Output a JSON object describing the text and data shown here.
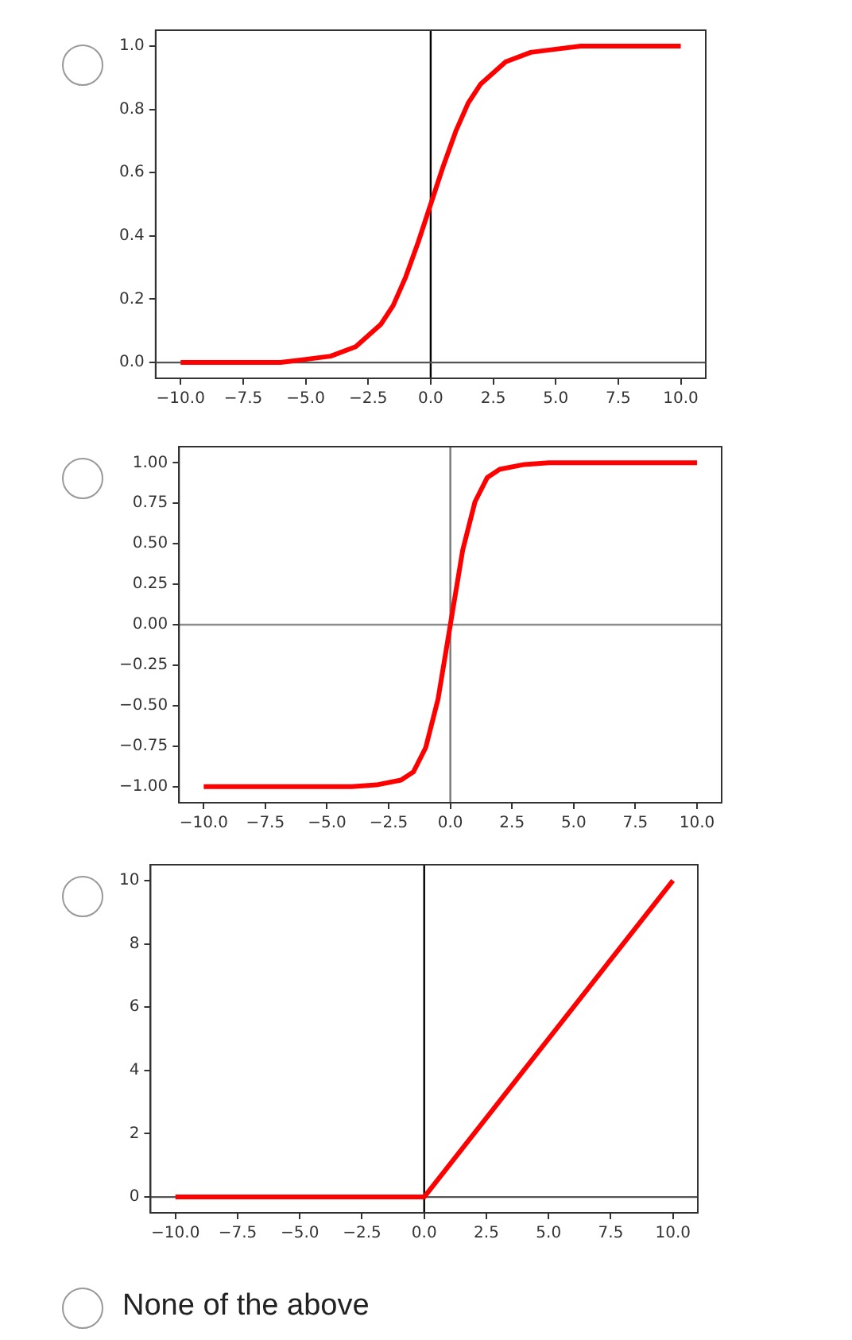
{
  "chart_data": [
    {
      "type": "line",
      "x": [
        -10,
        -8,
        -6,
        -5,
        -4,
        -3,
        -2,
        -1.5,
        -1,
        -0.5,
        0,
        0.5,
        1,
        1.5,
        2,
        3,
        4,
        5,
        6,
        8,
        10
      ],
      "series": [
        {
          "color": "#ff0000",
          "values": [
            0,
            0,
            0,
            0.01,
            0.02,
            0.05,
            0.12,
            0.18,
            0.27,
            0.38,
            0.5,
            0.62,
            0.73,
            0.82,
            0.88,
            0.95,
            0.98,
            0.99,
            1,
            1,
            1
          ]
        }
      ],
      "xlim": [
        -11,
        11
      ],
      "ylim": [
        -0.05,
        1.05
      ],
      "xticks": [
        {
          "value": -10,
          "label": "−10.0"
        },
        {
          "value": -7.5,
          "label": "−7.5"
        },
        {
          "value": -5,
          "label": "−5.0"
        },
        {
          "value": -2.5,
          "label": "−2.5"
        },
        {
          "value": 0,
          "label": "0.0"
        },
        {
          "value": 2.5,
          "label": "2.5"
        },
        {
          "value": 5,
          "label": "5.0"
        },
        {
          "value": 7.5,
          "label": "7.5"
        },
        {
          "value": 10,
          "label": "10.0"
        }
      ],
      "yticks": [
        {
          "value": 0,
          "label": "0.0"
        },
        {
          "value": 0.2,
          "label": "0.2"
        },
        {
          "value": 0.4,
          "label": "0.4"
        },
        {
          "value": 0.6,
          "label": "0.6"
        },
        {
          "value": 0.8,
          "label": "0.8"
        },
        {
          "value": 1,
          "label": "1.0"
        }
      ],
      "ref_lines": [
        {
          "axis": "x",
          "value": 0,
          "color": "#000000"
        },
        {
          "axis": "y",
          "value": 0,
          "color": "#555555"
        }
      ],
      "grid": false,
      "legend": false,
      "marker": "none",
      "line_style": "solid"
    },
    {
      "type": "line",
      "x": [
        -10,
        -6,
        -4,
        -3,
        -2,
        -1.5,
        -1,
        -0.5,
        0,
        0.5,
        1,
        1.5,
        2,
        3,
        4,
        6,
        10
      ],
      "series": [
        {
          "color": "#ff0000",
          "values": [
            -1,
            -1,
            -1,
            -0.99,
            -0.96,
            -0.91,
            -0.76,
            -0.46,
            0,
            0.46,
            0.76,
            0.91,
            0.96,
            0.99,
            1,
            1,
            1
          ]
        }
      ],
      "xlim": [
        -11,
        11
      ],
      "ylim": [
        -1.1,
        1.1
      ],
      "xticks": [
        {
          "value": -10,
          "label": "−10.0"
        },
        {
          "value": -7.5,
          "label": "−7.5"
        },
        {
          "value": -5,
          "label": "−5.0"
        },
        {
          "value": -2.5,
          "label": "−2.5"
        },
        {
          "value": 0,
          "label": "0.0"
        },
        {
          "value": 2.5,
          "label": "2.5"
        },
        {
          "value": 5,
          "label": "5.0"
        },
        {
          "value": 7.5,
          "label": "7.5"
        },
        {
          "value": 10,
          "label": "10.0"
        }
      ],
      "yticks": [
        {
          "value": -1,
          "label": "−1.00"
        },
        {
          "value": -0.75,
          "label": "−0.75"
        },
        {
          "value": -0.5,
          "label": "−0.50"
        },
        {
          "value": -0.25,
          "label": "−0.25"
        },
        {
          "value": 0,
          "label": "0.00"
        },
        {
          "value": 0.25,
          "label": "0.25"
        },
        {
          "value": 0.5,
          "label": "0.50"
        },
        {
          "value": 0.75,
          "label": "0.75"
        },
        {
          "value": 1,
          "label": "1.00"
        }
      ],
      "ref_lines": [
        {
          "axis": "x",
          "value": 0,
          "color": "#777777"
        },
        {
          "axis": "y",
          "value": 0,
          "color": "#8c8c8c"
        }
      ],
      "grid": false,
      "legend": false,
      "marker": "none",
      "line_style": "solid"
    },
    {
      "type": "line",
      "x": [
        -10,
        0,
        10
      ],
      "series": [
        {
          "color": "#ff0000",
          "values": [
            0,
            0,
            10
          ]
        }
      ],
      "xlim": [
        -11,
        11
      ],
      "ylim": [
        -0.5,
        10.5
      ],
      "xticks": [
        {
          "value": -10,
          "label": "−10.0"
        },
        {
          "value": -7.5,
          "label": "−7.5"
        },
        {
          "value": -5,
          "label": "−5.0"
        },
        {
          "value": -2.5,
          "label": "−2.5"
        },
        {
          "value": 0,
          "label": "0.0"
        },
        {
          "value": 2.5,
          "label": "2.5"
        },
        {
          "value": 5,
          "label": "5.0"
        },
        {
          "value": 7.5,
          "label": "7.5"
        },
        {
          "value": 10,
          "label": "10.0"
        }
      ],
      "yticks": [
        0,
        2,
        4,
        6,
        8,
        10
      ],
      "ref_lines": [
        {
          "axis": "x",
          "value": 0,
          "color": "#000000"
        },
        {
          "axis": "y",
          "value": 0,
          "color": "#555555"
        }
      ],
      "grid": false,
      "legend": false,
      "marker": "none",
      "line_style": "solid"
    },
    {
      "type": "other",
      "annotations": [
        "None of the above"
      ]
    }
  ]
}
